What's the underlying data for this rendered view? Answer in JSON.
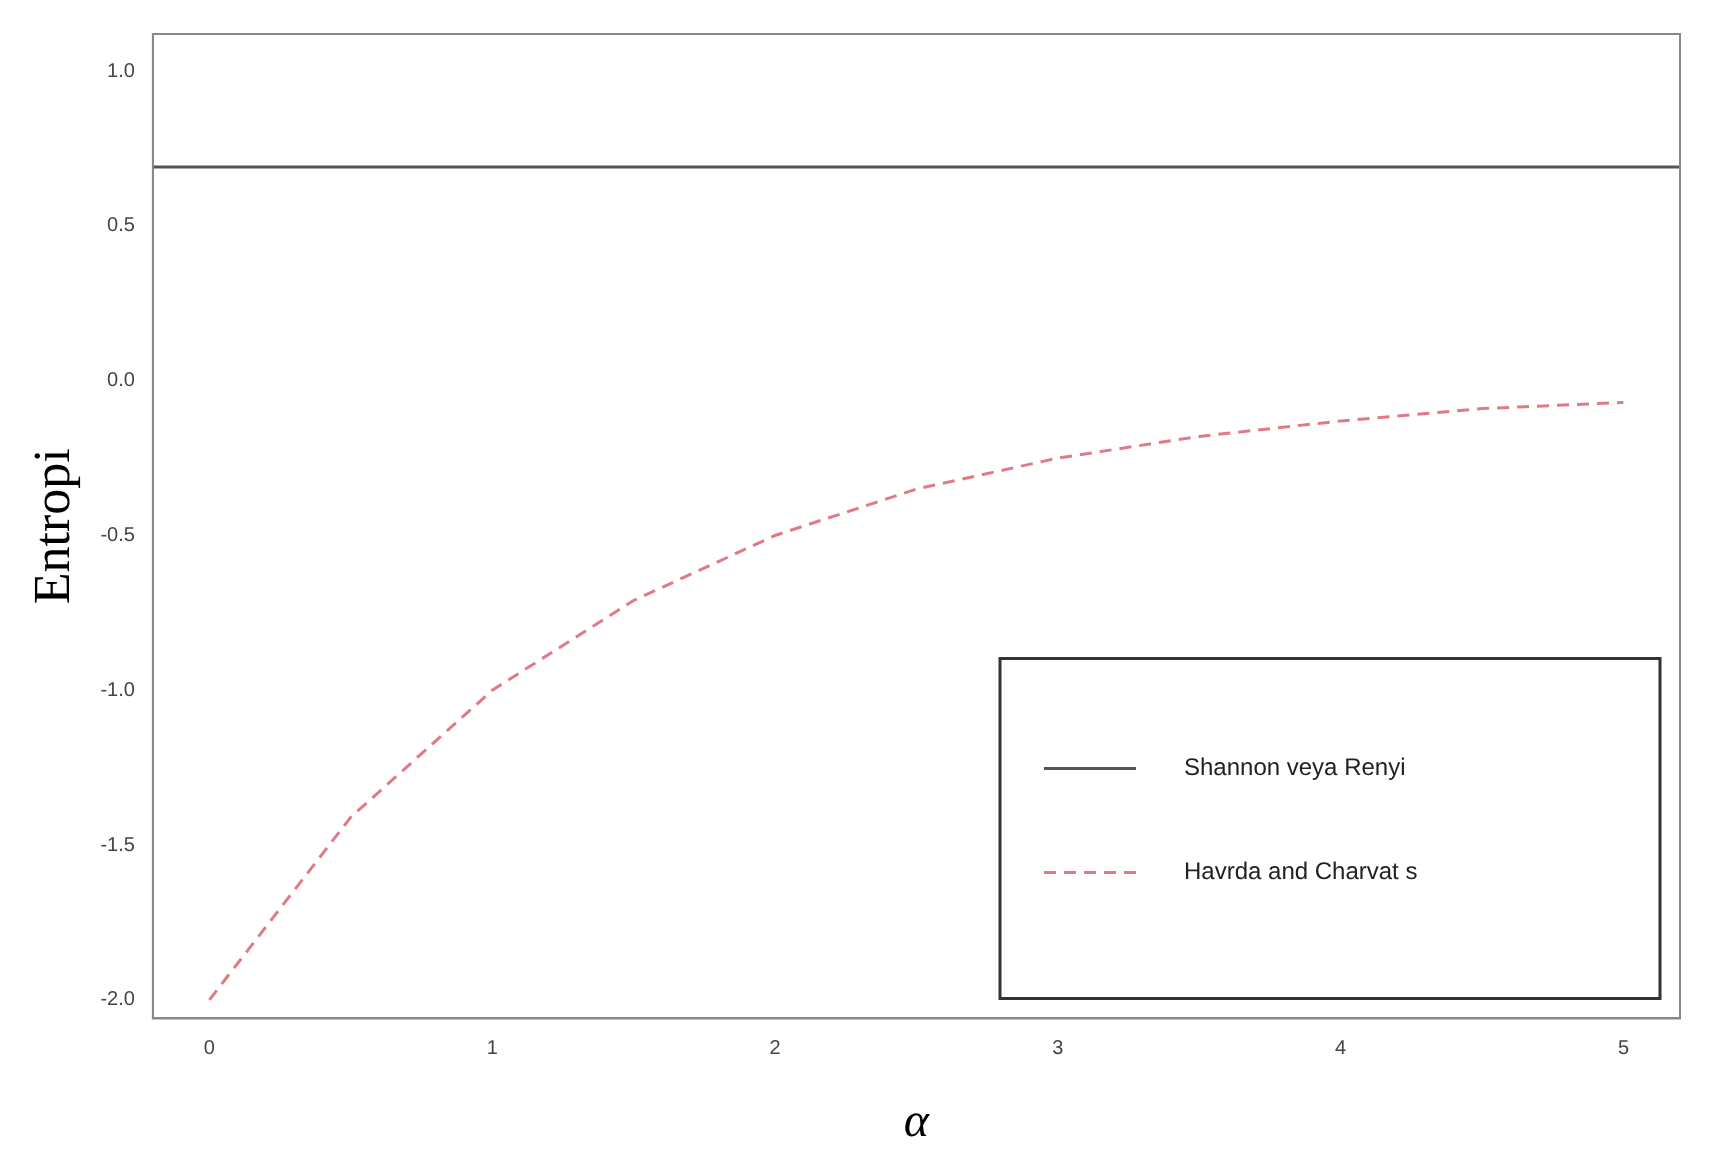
{
  "chart_data": {
    "type": "line",
    "xlabel": "α",
    "ylabel": "Entropi",
    "x": [
      0,
      0.5,
      1,
      1.5,
      2,
      2.5,
      3,
      3.5,
      4,
      4.5,
      5
    ],
    "series": [
      {
        "name": "Shannon veya Renyi",
        "color": "#555555",
        "line_style": "solid",
        "x": [
          -0.2,
          5.2
        ],
        "values": [
          0.69,
          0.69
        ]
      },
      {
        "name": "Havrda and Charvat s",
        "color": "#e07a86",
        "line_style": "dashed",
        "values": [
          -2.0,
          -1.41,
          -1.0,
          -0.71,
          -0.5,
          -0.35,
          -0.25,
          -0.18,
          -0.13,
          -0.09,
          -0.07
        ]
      }
    ],
    "xlim": [
      -0.2,
      5.2
    ],
    "xticks": [
      0,
      1,
      2,
      3,
      4,
      5
    ],
    "ylim": [
      -2.06,
      1.12
    ],
    "yticks": [
      {
        "value": -2,
        "label": "-2.0"
      },
      {
        "value": -1.5,
        "label": "-1.5"
      },
      {
        "value": -1,
        "label": "-1.0"
      },
      {
        "value": -0.5,
        "label": "-0.5"
      },
      {
        "value": 0,
        "label": "0.0"
      },
      {
        "value": 0.5,
        "label": "0.5"
      },
      {
        "value": 1,
        "label": "1.0"
      }
    ],
    "grid": false,
    "legend": "bottom right"
  }
}
